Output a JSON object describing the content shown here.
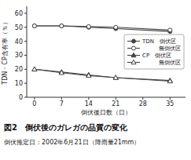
{
  "chart_data": {
    "type": "line",
    "title": "図2　倒伏後のガレガの品質の変化",
    "subtitle": "倒伏推定日：2002年6月21日（降雨量21mm）",
    "x_label": "倒伏後日数（日）",
    "y_label": "TDN・CP含有率（％）",
    "x": [
      0,
      7,
      14,
      21,
      35
    ],
    "series": [
      {
        "name": "TDN　倒伏区",
        "color": "#444444",
        "marker": "circle",
        "values": [
          51,
          51,
          50,
          49,
          47
        ]
      },
      {
        "name": "　　　無倒伏区",
        "color": "#444444",
        "marker": "circle-open",
        "values": [
          51,
          51,
          50.5,
          50,
          48
        ]
      },
      {
        "name": "CP　倒伏区",
        "color": "#444444",
        "marker": "triangle",
        "values": [
          20,
          18,
          16,
          14,
          12
        ]
      },
      {
        "name": "　　　無倒伏区",
        "color": "#444444",
        "marker": "triangle-open",
        "values": [
          20,
          17.5,
          15.5,
          14,
          11.5
        ]
      }
    ],
    "xlim": [
      -2,
      39
    ],
    "ylim": [
      0,
      65
    ],
    "xticks": [
      0,
      7,
      14,
      21,
      28,
      35
    ],
    "yticks": [
      0,
      10,
      20,
      30,
      40,
      50,
      60
    ],
    "grid": false,
    "legend": "center right"
  }
}
